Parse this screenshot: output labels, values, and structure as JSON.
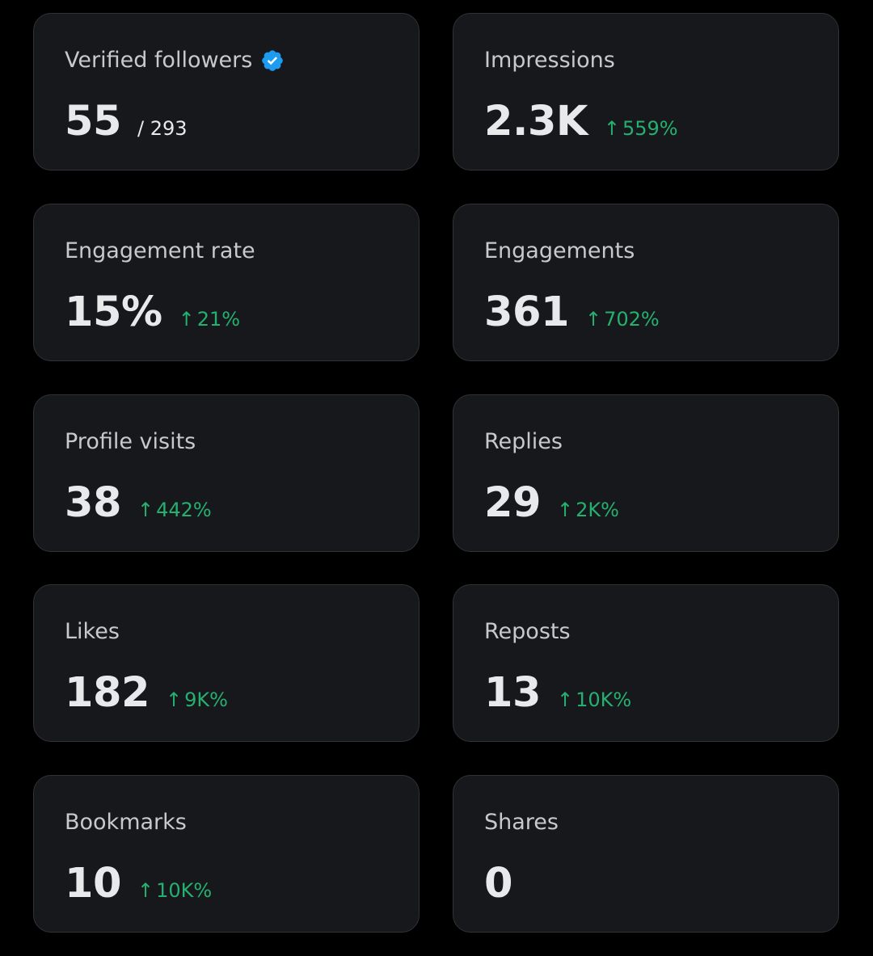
{
  "colors": {
    "background": "#000000",
    "card": "#16181c",
    "card_border": "#2f3336",
    "label": "#c7cacd",
    "value": "#e7e9ea",
    "positive": "#26b070",
    "verified": "#1d9bf0"
  },
  "cards": [
    {
      "label": "Verified followers",
      "value": "55",
      "sub": "/ 293",
      "change": "",
      "icon": "verified-badge-icon"
    },
    {
      "label": "Impressions",
      "value": "2.3K",
      "sub": "",
      "change": "559%"
    },
    {
      "label": "Engagement rate",
      "value": "15%",
      "sub": "",
      "change": "21%"
    },
    {
      "label": "Engagements",
      "value": "361",
      "sub": "",
      "change": "702%"
    },
    {
      "label": "Profile visits",
      "value": "38",
      "sub": "",
      "change": "442%"
    },
    {
      "label": "Replies",
      "value": "29",
      "sub": "",
      "change": "2K%"
    },
    {
      "label": "Likes",
      "value": "182",
      "sub": "",
      "change": "9K%"
    },
    {
      "label": "Reposts",
      "value": "13",
      "sub": "",
      "change": "10K%"
    },
    {
      "label": "Bookmarks",
      "value": "10",
      "sub": "",
      "change": "10K%"
    },
    {
      "label": "Shares",
      "value": "0",
      "sub": "",
      "change": ""
    }
  ],
  "change_arrow": "↑"
}
